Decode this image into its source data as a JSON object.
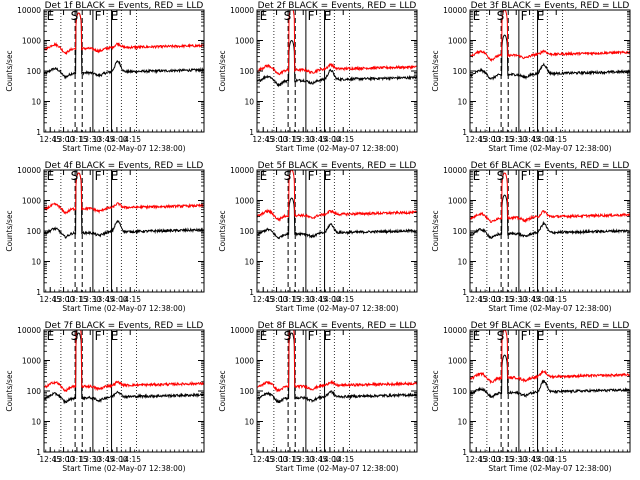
{
  "figure": {
    "background": "#ffffff"
  },
  "colors": {
    "events": "#000000",
    "lld": "#ff0000",
    "axis": "#000000"
  },
  "chart_data": [
    {
      "type": "line",
      "title": "Det 1f BLACK = Events, RED = LLD",
      "xlabel": "Start Time (02-May-07 12:38:00)",
      "ylabel": "Counts/sec",
      "yscale": "log",
      "ylim": [
        1,
        10000
      ],
      "xlim_min": [
        38,
        218
      ],
      "xticks_min": [
        45,
        60,
        75,
        90,
        105,
        120,
        135
      ],
      "xtick_labels": [
        "12:45",
        "13:00",
        "13:15",
        "13:30",
        "13:45",
        "14:00",
        "14:15"
      ],
      "yticks": [
        1,
        10,
        100,
        1000,
        10000
      ],
      "ytick_labels": [
        "1",
        "10",
        "100",
        "1000",
        "10000"
      ],
      "series": [
        {
          "name": "Events",
          "color": "#000000",
          "level": 80,
          "peak": 8000,
          "flare_ratio": 2.2
        },
        {
          "name": "LLD",
          "color": "#ff0000",
          "level": 500,
          "peak": 8000,
          "flare_ratio": 1.35
        }
      ],
      "regions": [
        {
          "letter": "E",
          "at_min": 41
        },
        {
          "letter": "S",
          "at_min": 68
        },
        {
          "letter": "F",
          "at_min": 95
        },
        {
          "letter": "E",
          "at_min": 113
        }
      ],
      "dotted_lines_min": [
        57,
        109,
        125,
        142
      ],
      "dashed_lines_min": [
        73,
        81
      ],
      "solid_lines_min": [
        93,
        114
      ]
    },
    {
      "type": "line",
      "title": "Det 2f BLACK = Events, RED = LLD",
      "xlabel": "Start Time (02-May-07 12:38:00)",
      "ylabel": "Counts/sec",
      "yscale": "log",
      "ylim": [
        1,
        10000
      ],
      "xlim_min": [
        38,
        218
      ],
      "xticks_min": [
        45,
        60,
        75,
        90,
        105,
        120,
        135
      ],
      "xtick_labels": [
        "12:45",
        "13:00",
        "13:15",
        "13:30",
        "13:45",
        "14:00",
        "14:15"
      ],
      "yticks": [
        1,
        10,
        100,
        1000,
        10000
      ],
      "ytick_labels": [
        "1",
        "10",
        "100",
        "1000",
        "10000"
      ],
      "series": [
        {
          "name": "Events",
          "color": "#000000",
          "level": 45,
          "peak": 1000,
          "flare_ratio": 2.0
        },
        {
          "name": "LLD",
          "color": "#ff0000",
          "level": 100,
          "peak": 12000,
          "flare_ratio": 1.4
        }
      ],
      "regions": [
        {
          "letter": "E",
          "at_min": 41
        },
        {
          "letter": "S",
          "at_min": 68
        },
        {
          "letter": "F",
          "at_min": 95
        },
        {
          "letter": "E",
          "at_min": 113
        }
      ],
      "dotted_lines_min": [
        57,
        109,
        125,
        142
      ],
      "dashed_lines_min": [
        73,
        81
      ],
      "solid_lines_min": [
        93,
        114
      ]
    },
    {
      "type": "line",
      "title": "Det 3f BLACK = Events, RED = LLD",
      "xlabel": "Start Time (02-May-07 12:38:00)",
      "ylabel": "Counts/sec",
      "yscale": "log",
      "ylim": [
        1,
        10000
      ],
      "xlim_min": [
        38,
        218
      ],
      "xticks_min": [
        45,
        60,
        75,
        90,
        105,
        120,
        135
      ],
      "xtick_labels": [
        "12:45",
        "13:00",
        "13:15",
        "13:30",
        "13:45",
        "14:00",
        "14:15"
      ],
      "yticks": [
        1,
        10,
        100,
        1000,
        10000
      ],
      "ytick_labels": [
        "1",
        "10",
        "100",
        "1000",
        "10000"
      ],
      "series": [
        {
          "name": "Events",
          "color": "#000000",
          "level": 70,
          "peak": 1500,
          "flare_ratio": 2.0
        },
        {
          "name": "LLD",
          "color": "#ff0000",
          "level": 300,
          "peak": 10000,
          "flare_ratio": 1.3
        }
      ],
      "regions": [
        {
          "letter": "E",
          "at_min": 41
        },
        {
          "letter": "S",
          "at_min": 68
        },
        {
          "letter": "F",
          "at_min": 95
        },
        {
          "letter": "E",
          "at_min": 113
        }
      ],
      "dotted_lines_min": [
        57,
        109,
        125,
        142
      ],
      "dashed_lines_min": [
        73,
        81
      ],
      "solid_lines_min": [
        93,
        114
      ]
    },
    {
      "type": "line",
      "title": "Det 4f BLACK = Events, RED = LLD",
      "xlabel": "Start Time (02-May-07 12:38:00)",
      "ylabel": "Counts/sec",
      "yscale": "log",
      "ylim": [
        1,
        10000
      ],
      "xlim_min": [
        38,
        218
      ],
      "xticks_min": [
        45,
        60,
        75,
        90,
        105,
        120,
        135
      ],
      "xtick_labels": [
        "12:45",
        "13:00",
        "13:15",
        "13:30",
        "13:45",
        "14:00",
        "14:15"
      ],
      "yticks": [
        1,
        10,
        100,
        1000,
        10000
      ],
      "ytick_labels": [
        "1",
        "10",
        "100",
        "1000",
        "10000"
      ],
      "series": [
        {
          "name": "Events",
          "color": "#000000",
          "level": 80,
          "peak": 8000,
          "flare_ratio": 2.2
        },
        {
          "name": "LLD",
          "color": "#ff0000",
          "level": 500,
          "peak": 8000,
          "flare_ratio": 1.35
        }
      ],
      "regions": [
        {
          "letter": "E",
          "at_min": 41
        },
        {
          "letter": "S",
          "at_min": 68
        },
        {
          "letter": "F",
          "at_min": 95
        },
        {
          "letter": "E",
          "at_min": 113
        }
      ],
      "dotted_lines_min": [
        57,
        109,
        125,
        142
      ],
      "dashed_lines_min": [
        73,
        81
      ],
      "solid_lines_min": [
        93,
        114
      ]
    },
    {
      "type": "line",
      "title": "Det 5f BLACK = Events, RED = LLD",
      "xlabel": "Start Time (02-May-07 12:38:00)",
      "ylabel": "Counts/sec",
      "yscale": "log",
      "ylim": [
        1,
        10000
      ],
      "xlim_min": [
        38,
        218
      ],
      "xticks_min": [
        45,
        60,
        75,
        90,
        105,
        120,
        135
      ],
      "xtick_labels": [
        "12:45",
        "13:00",
        "13:15",
        "13:30",
        "13:45",
        "14:00",
        "14:15"
      ],
      "yticks": [
        1,
        10,
        100,
        1000,
        10000
      ],
      "ytick_labels": [
        "1",
        "10",
        "100",
        "1000",
        "10000"
      ],
      "series": [
        {
          "name": "Events",
          "color": "#000000",
          "level": 75,
          "peak": 1200,
          "flare_ratio": 1.9
        },
        {
          "name": "LLD",
          "color": "#ff0000",
          "level": 300,
          "peak": 10000,
          "flare_ratio": 1.3
        }
      ],
      "regions": [
        {
          "letter": "E",
          "at_min": 41
        },
        {
          "letter": "S",
          "at_min": 68
        },
        {
          "letter": "F",
          "at_min": 95
        },
        {
          "letter": "E",
          "at_min": 113
        }
      ],
      "dotted_lines_min": [
        57,
        109,
        125,
        142
      ],
      "dashed_lines_min": [
        73,
        81
      ],
      "solid_lines_min": [
        93,
        114
      ]
    },
    {
      "type": "line",
      "title": "Det 6f BLACK = Events, RED = LLD",
      "xlabel": "Start Time (02-May-07 12:38:00)",
      "ylabel": "Counts/sec",
      "yscale": "log",
      "ylim": [
        1,
        10000
      ],
      "xlim_min": [
        38,
        218
      ],
      "xticks_min": [
        45,
        60,
        75,
        90,
        105,
        120,
        135
      ],
      "xtick_labels": [
        "12:45",
        "13:00",
        "13:15",
        "13:30",
        "13:45",
        "14:00",
        "14:15"
      ],
      "yticks": [
        1,
        10,
        100,
        1000,
        10000
      ],
      "ytick_labels": [
        "1",
        "10",
        "100",
        "1000",
        "10000"
      ],
      "series": [
        {
          "name": "Events",
          "color": "#000000",
          "level": 75,
          "peak": 1500,
          "flare_ratio": 2.0
        },
        {
          "name": "LLD",
          "color": "#ff0000",
          "level": 250,
          "peak": 8000,
          "flare_ratio": 1.5
        }
      ],
      "regions": [
        {
          "letter": "E",
          "at_min": 41
        },
        {
          "letter": "S",
          "at_min": 68
        },
        {
          "letter": "F",
          "at_min": 95
        },
        {
          "letter": "E",
          "at_min": 113
        }
      ],
      "dotted_lines_min": [
        57,
        109,
        125,
        142
      ],
      "dashed_lines_min": [
        73,
        81
      ],
      "solid_lines_min": [
        93,
        114
      ]
    },
    {
      "type": "line",
      "title": "Det 7f BLACK = Events, RED = LLD",
      "xlabel": "Start Time (02-May-07 12:38:00)",
      "ylabel": "Counts/sec",
      "yscale": "log",
      "ylim": [
        1,
        10000
      ],
      "xlim_min": [
        38,
        218
      ],
      "xticks_min": [
        45,
        60,
        75,
        90,
        105,
        120,
        135
      ],
      "xtick_labels": [
        "12:45",
        "13:00",
        "13:15",
        "13:30",
        "13:45",
        "14:00",
        "14:15"
      ],
      "yticks": [
        1,
        10,
        100,
        1000,
        10000
      ],
      "ytick_labels": [
        "1",
        "10",
        "100",
        "1000",
        "10000"
      ],
      "series": [
        {
          "name": "Events",
          "color": "#000000",
          "level": 55,
          "peak": 8000,
          "flare_ratio": 1.5
        },
        {
          "name": "LLD",
          "color": "#ff0000",
          "level": 130,
          "peak": 15000,
          "flare_ratio": 1.3
        }
      ],
      "regions": [
        {
          "letter": "E",
          "at_min": 41
        },
        {
          "letter": "S",
          "at_min": 68
        },
        {
          "letter": "F",
          "at_min": 95
        },
        {
          "letter": "E",
          "at_min": 113
        }
      ],
      "dotted_lines_min": [
        57,
        109,
        125,
        142
      ],
      "dashed_lines_min": [
        73,
        81
      ],
      "solid_lines_min": [
        93,
        114
      ]
    },
    {
      "type": "line",
      "title": "Det 8f BLACK = Events, RED = LLD",
      "xlabel": "Start Time (02-May-07 12:38:00)",
      "ylabel": "Counts/sec",
      "yscale": "log",
      "ylim": [
        1,
        10000
      ],
      "xlim_min": [
        38,
        218
      ],
      "xticks_min": [
        45,
        60,
        75,
        90,
        105,
        120,
        135
      ],
      "xtick_labels": [
        "12:45",
        "13:00",
        "13:15",
        "13:30",
        "13:45",
        "14:00",
        "14:15"
      ],
      "yticks": [
        1,
        10,
        100,
        1000,
        10000
      ],
      "ytick_labels": [
        "1",
        "10",
        "100",
        "1000",
        "10000"
      ],
      "series": [
        {
          "name": "Events",
          "color": "#000000",
          "level": 55,
          "peak": 8000,
          "flare_ratio": 1.5
        },
        {
          "name": "LLD",
          "color": "#ff0000",
          "level": 130,
          "peak": 15000,
          "flare_ratio": 1.3
        }
      ],
      "regions": [
        {
          "letter": "E",
          "at_min": 41
        },
        {
          "letter": "S",
          "at_min": 68
        },
        {
          "letter": "F",
          "at_min": 95
        },
        {
          "letter": "E",
          "at_min": 113
        }
      ],
      "dotted_lines_min": [
        57,
        109,
        125,
        142
      ],
      "dashed_lines_min": [
        73,
        81
      ],
      "solid_lines_min": [
        93,
        114
      ]
    },
    {
      "type": "line",
      "title": "Det 9f BLACK = Events, RED = LLD",
      "xlabel": "Start Time (02-May-07 12:38:00)",
      "ylabel": "Counts/sec",
      "yscale": "log",
      "ylim": [
        1,
        10000
      ],
      "xlim_min": [
        38,
        218
      ],
      "xticks_min": [
        45,
        60,
        75,
        90,
        105,
        120,
        135
      ],
      "xtick_labels": [
        "12:45",
        "13:00",
        "13:15",
        "13:30",
        "13:45",
        "14:00",
        "14:15"
      ],
      "yticks": [
        1,
        10,
        100,
        1000,
        10000
      ],
      "ytick_labels": [
        "1",
        "10",
        "100",
        "1000",
        "10000"
      ],
      "series": [
        {
          "name": "Events",
          "color": "#000000",
          "level": 80,
          "peak": 1500,
          "flare_ratio": 2.3
        },
        {
          "name": "LLD",
          "color": "#ff0000",
          "level": 250,
          "peak": 10000,
          "flare_ratio": 1.5
        }
      ],
      "regions": [
        {
          "letter": "E",
          "at_min": 41
        },
        {
          "letter": "S",
          "at_min": 68
        },
        {
          "letter": "F",
          "at_min": 95
        },
        {
          "letter": "E",
          "at_min": 113
        }
      ],
      "dotted_lines_min": [
        57,
        109,
        125,
        142
      ],
      "dashed_lines_min": [
        73,
        81
      ],
      "solid_lines_min": [
        93,
        114
      ]
    }
  ]
}
